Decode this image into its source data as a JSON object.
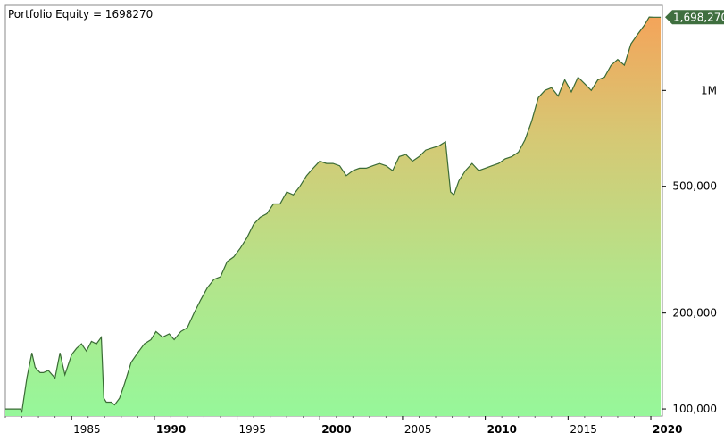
{
  "chart_data": {
    "type": "area",
    "title": "Portfolio Equity = 1698270",
    "y_scale": "log",
    "ylim": [
      95000,
      1850000
    ],
    "xlim": [
      1981.0,
      2020.7
    ],
    "x_ticks": [
      {
        "label": "1985",
        "value": 1985,
        "bold": false
      },
      {
        "label": "1990",
        "value": 1990,
        "bold": true
      },
      {
        "label": "1995",
        "value": 1995,
        "bold": false
      },
      {
        "label": "2000",
        "value": 2000,
        "bold": true
      },
      {
        "label": "2005",
        "value": 2005,
        "bold": false
      },
      {
        "label": "2010",
        "value": 2010,
        "bold": true
      },
      {
        "label": "2015",
        "value": 2015,
        "bold": false
      },
      {
        "label": "2020",
        "value": 2020,
        "bold": true
      }
    ],
    "y_ticks": [
      {
        "label": "100,000",
        "value": 100000
      },
      {
        "label": "200,000",
        "value": 200000
      },
      {
        "label": "500,000",
        "value": 500000
      },
      {
        "label": "1M",
        "value": 1000000
      }
    ],
    "last_value_label": "1,698,270",
    "colors": {
      "line": "#3a6b35",
      "fill_bottom": "#96f79a",
      "fill_top": "#f4a45a",
      "tag": "#3f6f3f"
    },
    "series": [
      {
        "x": [
          1981.0,
          1981.9,
          1982.0,
          1982.3,
          1982.6,
          1982.8,
          1983.1,
          1983.3,
          1983.6,
          1984.0,
          1984.3,
          1984.6,
          1985.0,
          1985.3,
          1985.6,
          1985.9,
          1986.2,
          1986.5,
          1986.8,
          1986.95,
          1987.1,
          1987.4,
          1987.6,
          1987.9,
          1988.2,
          1988.6,
          1989.0,
          1989.4,
          1989.8,
          1990.1,
          1990.5,
          1990.9,
          1991.2,
          1991.6,
          1992.0,
          1992.4,
          1992.8,
          1993.2,
          1993.6,
          1994.0,
          1994.4,
          1994.8,
          1995.2,
          1995.6,
          1996.0,
          1996.4,
          1996.8,
          1997.2,
          1997.6,
          1998.0,
          1998.4,
          1998.8,
          1999.2,
          1999.6,
          2000.0,
          2000.4,
          2000.8,
          2001.2,
          2001.6,
          2002.0,
          2002.4,
          2002.8,
          2003.2,
          2003.6,
          2004.0,
          2004.4,
          2004.8,
          2005.2,
          2005.6,
          2006.0,
          2006.4,
          2006.8,
          2007.2,
          2007.6,
          2007.9,
          2008.1,
          2008.4,
          2008.8,
          2009.2,
          2009.6,
          2010.0,
          2010.4,
          2010.8,
          2011.2,
          2011.6,
          2012.0,
          2012.4,
          2012.8,
          2013.2,
          2013.6,
          2014.0,
          2014.4,
          2014.8,
          2015.2,
          2015.6,
          2016.0,
          2016.4,
          2016.8,
          2017.2,
          2017.6,
          2018.0,
          2018.4,
          2018.8,
          2019.2,
          2019.6,
          2019.9,
          2020.2,
          2020.6
        ],
        "y": [
          100000,
          100000,
          98000,
          125000,
          150000,
          135000,
          130000,
          130000,
          132000,
          125000,
          150000,
          128000,
          148000,
          155000,
          160000,
          152000,
          163000,
          160000,
          168000,
          108000,
          105000,
          105000,
          103000,
          108000,
          120000,
          140000,
          150000,
          160000,
          165000,
          175000,
          168000,
          172000,
          165000,
          175000,
          180000,
          200000,
          220000,
          240000,
          255000,
          260000,
          290000,
          300000,
          320000,
          345000,
          380000,
          400000,
          410000,
          440000,
          440000,
          480000,
          470000,
          500000,
          540000,
          570000,
          600000,
          590000,
          590000,
          580000,
          540000,
          560000,
          570000,
          570000,
          580000,
          590000,
          580000,
          560000,
          620000,
          630000,
          600000,
          620000,
          650000,
          660000,
          670000,
          690000,
          480000,
          470000,
          520000,
          560000,
          590000,
          560000,
          570000,
          580000,
          590000,
          610000,
          620000,
          640000,
          700000,
          800000,
          950000,
          1000000,
          1020000,
          960000,
          1080000,
          990000,
          1100000,
          1050000,
          1000000,
          1080000,
          1100000,
          1200000,
          1250000,
          1200000,
          1400000,
          1500000,
          1600000,
          1700000,
          1698270,
          1698270
        ]
      }
    ]
  }
}
